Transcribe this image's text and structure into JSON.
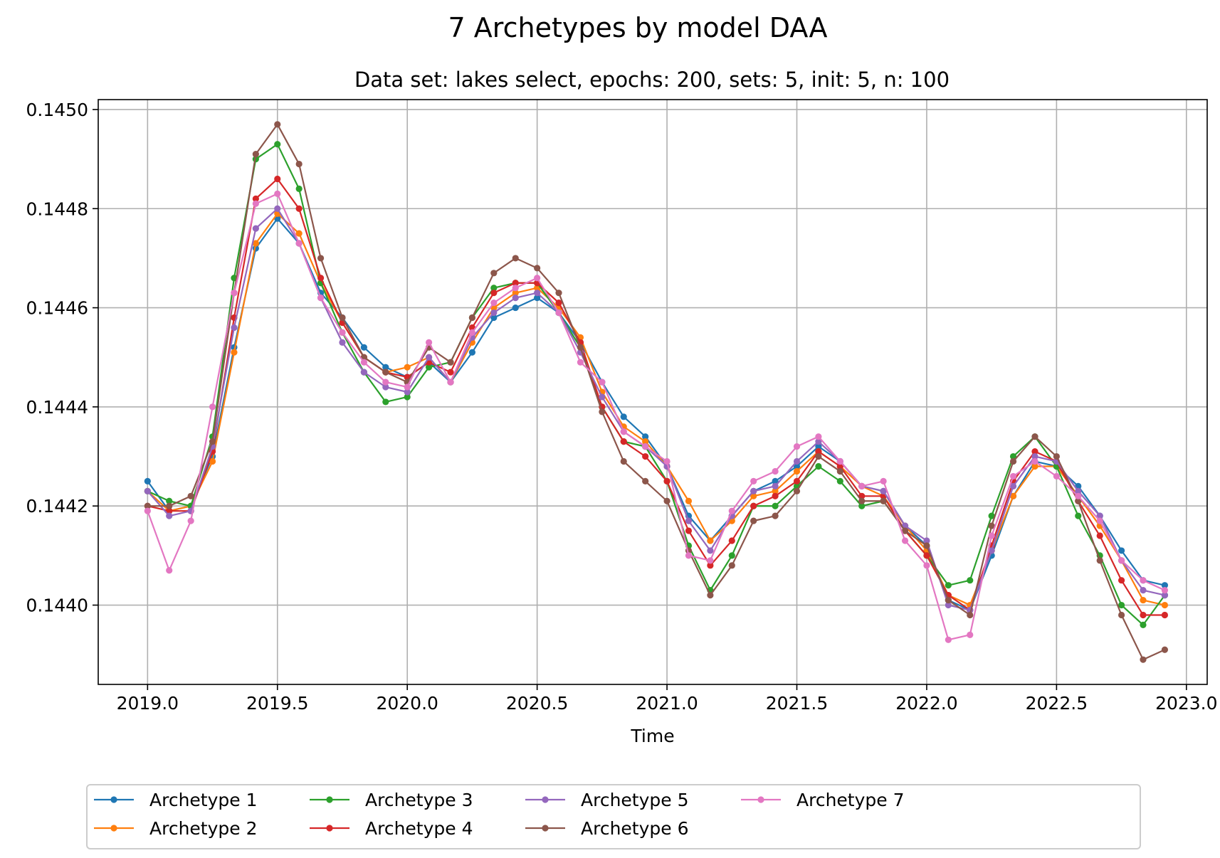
{
  "chart_data": {
    "type": "line",
    "title": "7 Archetypes by model DAA",
    "subtitle": "Data set: lakes select, epochs: 200, sets: 5, init: 5, n: 100",
    "xlabel": "Time",
    "ylabel": "",
    "xlim": [
      2018.81,
      2023.08
    ],
    "ylim": [
      0.14384,
      0.14502
    ],
    "xticks": [
      2019.0,
      2019.5,
      2020.0,
      2020.5,
      2021.0,
      2021.5,
      2022.0,
      2022.5,
      2023.0
    ],
    "xtick_labels": [
      "2019.0",
      "2019.5",
      "2020.0",
      "2020.5",
      "2021.0",
      "2021.5",
      "2022.0",
      "2022.5",
      "2023.0"
    ],
    "yticks": [
      0.144,
      0.1442,
      0.1444,
      0.1446,
      0.1448,
      0.145
    ],
    "ytick_labels": [
      "0.1440",
      "0.1442",
      "0.1444",
      "0.1446",
      "0.1448",
      "0.1450"
    ],
    "grid": true,
    "legend_position": "bottom-center",
    "x": [
      2019.0,
      2019.0833,
      2019.1667,
      2019.25,
      2019.3333,
      2019.4167,
      2019.5,
      2019.5833,
      2019.6667,
      2019.75,
      2019.8333,
      2019.9167,
      2020.0,
      2020.0833,
      2020.1667,
      2020.25,
      2020.3333,
      2020.4167,
      2020.5,
      2020.5833,
      2020.6667,
      2020.75,
      2020.8333,
      2020.9167,
      2021.0,
      2021.0833,
      2021.1667,
      2021.25,
      2021.3333,
      2021.4167,
      2021.5,
      2021.5833,
      2021.6667,
      2021.75,
      2021.8333,
      2021.9167,
      2022.0,
      2022.0833,
      2022.1667,
      2022.25,
      2022.3333,
      2022.4167,
      2022.5,
      2022.5833,
      2022.6667,
      2022.75,
      2022.8333,
      2022.9167
    ],
    "series": [
      {
        "name": "Archetype 1",
        "color": "#1f77b4",
        "values": [
          0.14425,
          0.14419,
          0.1442,
          0.1443,
          0.14452,
          0.14472,
          0.14478,
          0.14473,
          0.14463,
          0.14458,
          0.14452,
          0.14448,
          0.14446,
          0.14449,
          0.14445,
          0.14451,
          0.14458,
          0.1446,
          0.14462,
          0.14459,
          0.14453,
          0.14445,
          0.14438,
          0.14434,
          0.14428,
          0.14418,
          0.14413,
          0.14418,
          0.14423,
          0.14425,
          0.14428,
          0.14432,
          0.14429,
          0.14424,
          0.14423,
          0.14416,
          0.14412,
          0.14401,
          0.14399,
          0.1441,
          0.14422,
          0.14429,
          0.14428,
          0.14424,
          0.14418,
          0.14411,
          0.14405,
          0.14404
        ]
      },
      {
        "name": "Archetype 2",
        "color": "#ff7f0e",
        "values": [
          0.14423,
          0.14419,
          0.1442,
          0.14429,
          0.14451,
          0.14473,
          0.14479,
          0.14475,
          0.14465,
          0.14457,
          0.1445,
          0.14447,
          0.14448,
          0.1445,
          0.14445,
          0.14453,
          0.1446,
          0.14463,
          0.14464,
          0.1446,
          0.14454,
          0.14443,
          0.14436,
          0.14433,
          0.14428,
          0.14421,
          0.14413,
          0.14417,
          0.14422,
          0.14423,
          0.14427,
          0.14431,
          0.14428,
          0.14424,
          0.14422,
          0.14416,
          0.14411,
          0.14402,
          0.144,
          0.14411,
          0.14422,
          0.14428,
          0.14428,
          0.14422,
          0.14416,
          0.14409,
          0.14401,
          0.144
        ]
      },
      {
        "name": "Archetype 3",
        "color": "#2ca02c",
        "values": [
          0.14423,
          0.14421,
          0.1442,
          0.14434,
          0.14466,
          0.1449,
          0.14493,
          0.14484,
          0.14465,
          0.14455,
          0.14447,
          0.14441,
          0.14442,
          0.14448,
          0.14449,
          0.14458,
          0.14464,
          0.14465,
          0.14465,
          0.14459,
          0.14452,
          0.1444,
          0.14433,
          0.14432,
          0.14425,
          0.14412,
          0.14403,
          0.1441,
          0.1442,
          0.1442,
          0.14424,
          0.14428,
          0.14425,
          0.1442,
          0.14421,
          0.14415,
          0.1441,
          0.14404,
          0.14405,
          0.14418,
          0.1443,
          0.14434,
          0.14428,
          0.14418,
          0.1441,
          0.144,
          0.14396,
          0.14402
        ]
      },
      {
        "name": "Archetype 4",
        "color": "#d62728",
        "values": [
          0.1442,
          0.14419,
          0.14419,
          0.14431,
          0.14458,
          0.14482,
          0.14486,
          0.1448,
          0.14466,
          0.14457,
          0.1445,
          0.14447,
          0.14446,
          0.14449,
          0.14447,
          0.14456,
          0.14463,
          0.14465,
          0.14465,
          0.14461,
          0.14453,
          0.1444,
          0.14433,
          0.1443,
          0.14425,
          0.14415,
          0.14408,
          0.14413,
          0.1442,
          0.14422,
          0.14425,
          0.14431,
          0.14428,
          0.14422,
          0.14422,
          0.14415,
          0.1441,
          0.14402,
          0.14399,
          0.14412,
          0.14425,
          0.14431,
          0.14429,
          0.14421,
          0.14414,
          0.14405,
          0.14398,
          0.14398
        ]
      },
      {
        "name": "Archetype 5",
        "color": "#9467bd",
        "values": [
          0.14423,
          0.14418,
          0.14419,
          0.14432,
          0.14456,
          0.14476,
          0.1448,
          0.14473,
          0.14462,
          0.14453,
          0.14447,
          0.14444,
          0.14443,
          0.1445,
          0.14445,
          0.14454,
          0.14459,
          0.14462,
          0.14463,
          0.14459,
          0.14451,
          0.14442,
          0.14435,
          0.14432,
          0.14428,
          0.14417,
          0.14411,
          0.14418,
          0.14423,
          0.14424,
          0.14429,
          0.14433,
          0.14429,
          0.14424,
          0.14423,
          0.14416,
          0.14413,
          0.144,
          0.14399,
          0.14411,
          0.14424,
          0.1443,
          0.14429,
          0.14423,
          0.14418,
          0.14409,
          0.14403,
          0.14402
        ]
      },
      {
        "name": "Archetype 6",
        "color": "#8c564b",
        "values": [
          0.1442,
          0.1442,
          0.14422,
          0.14433,
          0.14463,
          0.14491,
          0.14497,
          0.14489,
          0.1447,
          0.14458,
          0.1445,
          0.14447,
          0.14445,
          0.14452,
          0.14449,
          0.14458,
          0.14467,
          0.1447,
          0.14468,
          0.14463,
          0.14452,
          0.14439,
          0.14429,
          0.14425,
          0.14421,
          0.14411,
          0.14402,
          0.14408,
          0.14417,
          0.14418,
          0.14423,
          0.1443,
          0.14427,
          0.14421,
          0.14421,
          0.14415,
          0.14412,
          0.14401,
          0.14398,
          0.14416,
          0.14429,
          0.14434,
          0.1443,
          0.14421,
          0.14409,
          0.14398,
          0.14389,
          0.14391
        ]
      },
      {
        "name": "Archetype 7",
        "color": "#e377c2",
        "values": [
          0.14419,
          0.14407,
          0.14417,
          0.1444,
          0.14463,
          0.14481,
          0.14483,
          0.14473,
          0.14462,
          0.14455,
          0.14449,
          0.14445,
          0.14444,
          0.14453,
          0.14445,
          0.14455,
          0.14461,
          0.14464,
          0.14466,
          0.14459,
          0.14449,
          0.14445,
          0.14435,
          0.14432,
          0.14429,
          0.1441,
          0.14409,
          0.14419,
          0.14425,
          0.14427,
          0.14432,
          0.14434,
          0.14429,
          0.14424,
          0.14425,
          0.14413,
          0.14408,
          0.14393,
          0.14394,
          0.14414,
          0.14426,
          0.14429,
          0.14426,
          0.14422,
          0.14417,
          0.14409,
          0.14405,
          0.14403
        ]
      }
    ]
  }
}
